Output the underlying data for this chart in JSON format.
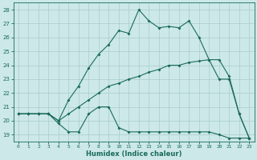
{
  "xlabel": "Humidex (Indice chaleur)",
  "ylabel": "",
  "bg_color": "#cce8e8",
  "grid_color": "#aacccc",
  "line_color": "#1a6b5a",
  "xlim": [
    -0.5,
    23.5
  ],
  "ylim": [
    18.5,
    28.5
  ],
  "xticks": [
    0,
    1,
    2,
    3,
    4,
    5,
    6,
    7,
    8,
    9,
    10,
    11,
    12,
    13,
    14,
    15,
    16,
    17,
    18,
    19,
    20,
    21,
    22,
    23
  ],
  "yticks": [
    19,
    20,
    21,
    22,
    23,
    24,
    25,
    26,
    27,
    28
  ],
  "line_top_x": [
    0,
    1,
    2,
    3,
    4,
    5,
    6,
    7,
    8,
    9,
    10,
    11,
    12,
    13,
    14,
    15,
    16,
    17,
    18,
    19,
    20,
    21,
    22,
    23
  ],
  "line_top_y": [
    20.5,
    20.5,
    20.5,
    20.5,
    20.0,
    21.5,
    22.5,
    23.8,
    24.8,
    25.5,
    26.5,
    26.3,
    28.0,
    27.2,
    26.7,
    26.8,
    26.7,
    27.2,
    26.0,
    24.4,
    23.0,
    23.0,
    20.5,
    18.75
  ],
  "line_mid_x": [
    0,
    1,
    2,
    3,
    4,
    5,
    6,
    7,
    8,
    9,
    10,
    11,
    12,
    13,
    14,
    15,
    16,
    17,
    18,
    19,
    20,
    21,
    22,
    23
  ],
  "line_mid_y": [
    20.5,
    20.5,
    20.5,
    20.5,
    20.0,
    20.5,
    21.0,
    21.5,
    22.0,
    22.5,
    22.7,
    23.0,
    23.2,
    23.5,
    23.7,
    24.0,
    24.0,
    24.2,
    24.3,
    24.4,
    24.4,
    23.2,
    20.5,
    18.75
  ],
  "line_bot_x": [
    0,
    1,
    2,
    3,
    4,
    5,
    6,
    7,
    8,
    9,
    10,
    11,
    12,
    13,
    14,
    15,
    16,
    17,
    18,
    19,
    20,
    21,
    22,
    23
  ],
  "line_bot_y": [
    20.5,
    20.5,
    20.5,
    20.5,
    19.8,
    19.2,
    19.2,
    20.5,
    21.0,
    21.0,
    19.5,
    19.2,
    19.2,
    19.2,
    19.2,
    19.2,
    19.2,
    19.2,
    19.2,
    19.2,
    19.0,
    18.75,
    18.75,
    18.75
  ]
}
